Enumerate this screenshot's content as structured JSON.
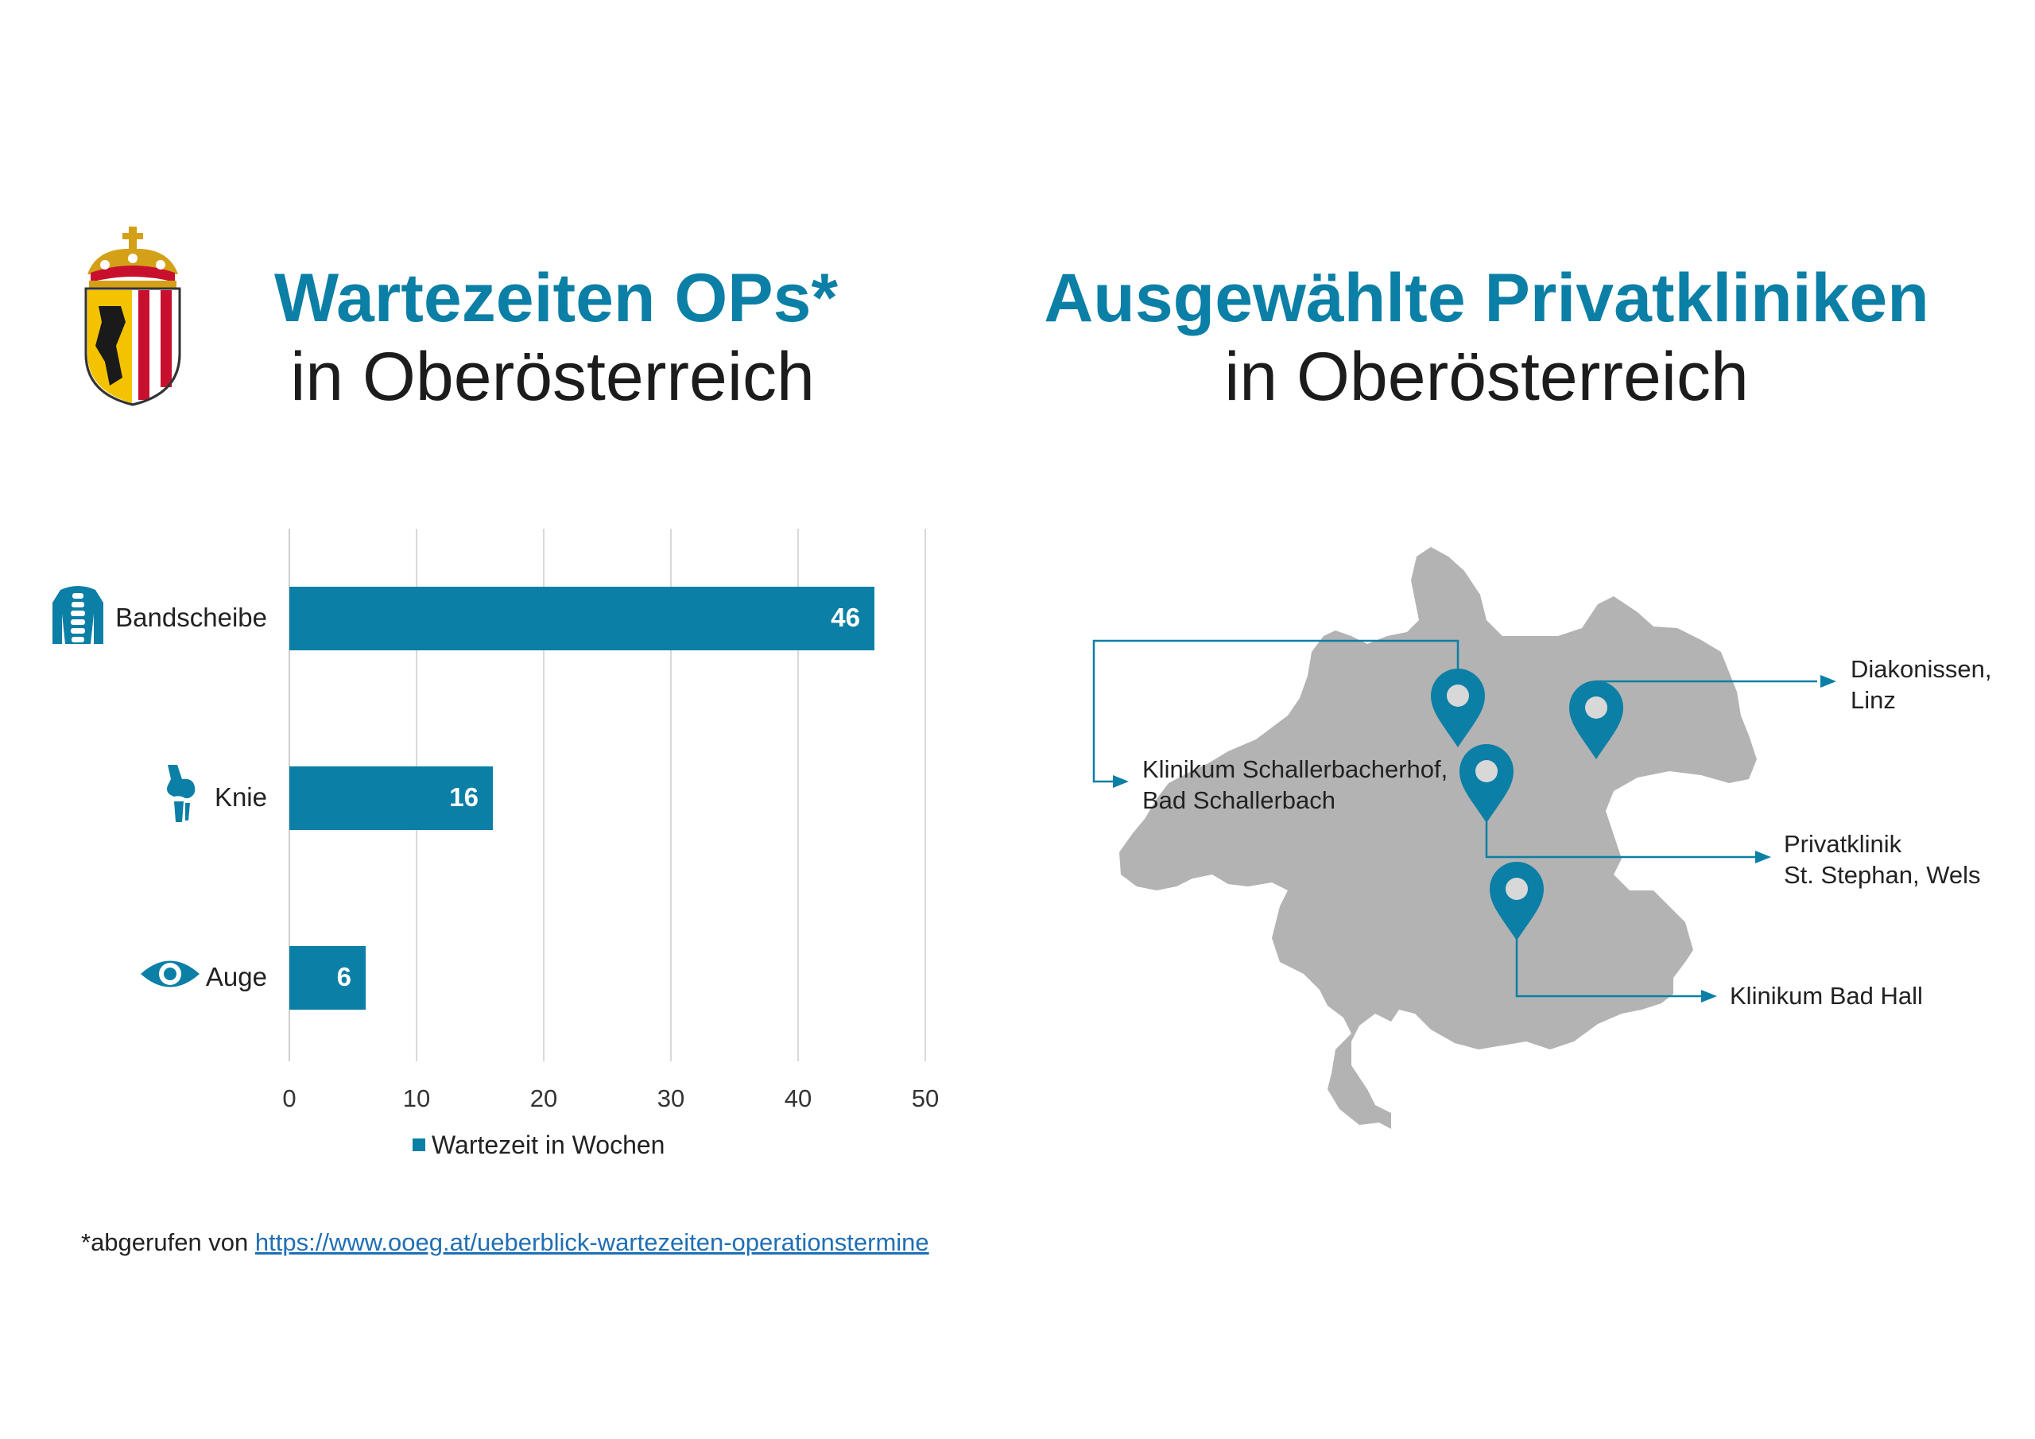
{
  "titles": {
    "left_bold": "Wartezeiten OPs*",
    "left_light": "in Oberösterreich",
    "right_bold": "Ausgewählte Privatkliniken",
    "right_light": "in Oberösterreich"
  },
  "chart_data": {
    "type": "bar",
    "orientation": "horizontal",
    "categories": [
      "Bandscheibe",
      "Knie",
      "Auge"
    ],
    "category_icons": [
      "spine-torso-icon",
      "knee-joint-icon",
      "eye-icon"
    ],
    "series": [
      {
        "name": "Wartezeit in Wochen",
        "values": [
          46,
          16,
          6
        ],
        "color": "#0b7fa5"
      }
    ],
    "xlim": [
      0,
      50
    ],
    "xticks": [
      "0",
      "10",
      "20",
      "30",
      "40",
      "50"
    ],
    "grid": true,
    "legend": "bottom"
  },
  "map": {
    "region_color": "#b3b3b3",
    "accent": "#0b7fa5",
    "clinics": [
      {
        "line1": "Diakonissen,",
        "line2": "Linz"
      },
      {
        "line1": "Klinikum Schallerbacherhof,",
        "line2": "Bad Schallerbach"
      },
      {
        "line1": "Privatklinik",
        "line2": "St. Stephan, Wels"
      },
      {
        "line1": "Klinikum Bad Hall",
        "line2": ""
      }
    ]
  },
  "footnote": {
    "prefix": "*abgerufen von ",
    "link": "https://www.ooeg.at/ueberblick-wartezeiten-operationstermine"
  },
  "colors": {
    "accent": "#0b7fa5",
    "text": "#222222",
    "map_gray": "#b3b3b3",
    "link": "#1f6fb5"
  }
}
